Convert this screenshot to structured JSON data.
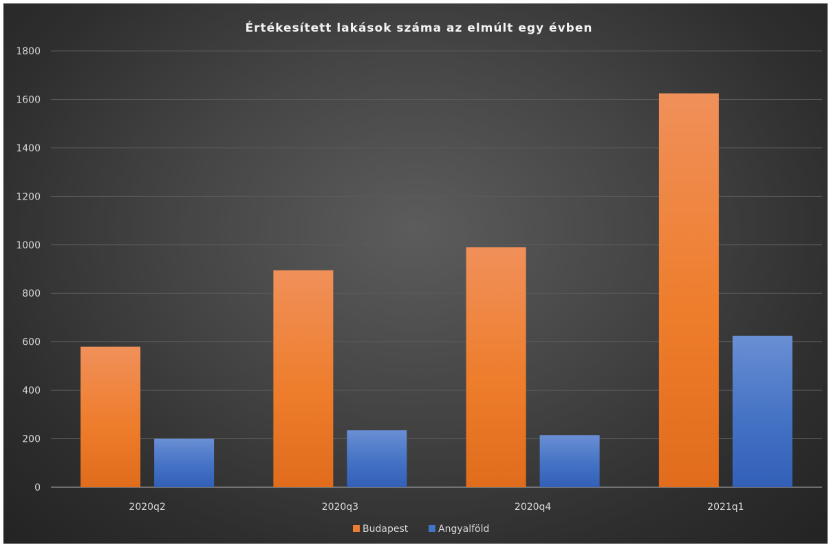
{
  "chart_data": {
    "type": "bar",
    "title": "Értékesített lakások száma az elmúlt egy évben",
    "categories": [
      "2020q2",
      "2020q3",
      "2020q4",
      "2021q1"
    ],
    "series": [
      {
        "name": "Budapest",
        "values": [
          580,
          895,
          990,
          1625
        ],
        "color": "#ed7d31"
      },
      {
        "name": "Angyalföld",
        "values": [
          200,
          235,
          215,
          625
        ],
        "color": "#4472c4"
      }
    ],
    "ylim": [
      0,
      1800
    ],
    "yticks": [
      "0",
      "200",
      "400",
      "600",
      "800",
      "1000",
      "1200",
      "1400",
      "1600",
      "1800"
    ],
    "xlabel": "",
    "ylabel": "",
    "grid": true,
    "legend": "bottom-center"
  }
}
